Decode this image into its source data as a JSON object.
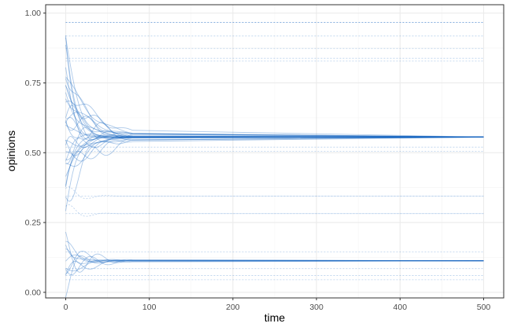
{
  "chart_data": {
    "type": "line",
    "title": "",
    "xlabel": "time",
    "ylabel": "opinions",
    "xlim": [
      -24,
      524
    ],
    "ylim": [
      -0.02,
      1.03
    ],
    "x_ticks": [
      0,
      100,
      200,
      300,
      400,
      500
    ],
    "y_ticks": [
      0.0,
      0.25,
      0.5,
      0.75,
      1.0
    ],
    "y_tick_labels": [
      "0.00",
      "0.25",
      "0.50",
      "0.75",
      "1.00"
    ],
    "x_major_minor": [
      50,
      150,
      250,
      350,
      450
    ],
    "y_minor": [
      0.125,
      0.375,
      0.625,
      0.875
    ],
    "grid": true,
    "colors": {
      "series": "#1565c0",
      "grid_major": "#ebebeb",
      "grid_minor": "#f4f4f4",
      "panel_border": "#333333"
    },
    "time_range": [
      0,
      500
    ],
    "series_groups": [
      {
        "name": "stable-0.967",
        "final_value": 0.967,
        "count": 3,
        "start_values": [
          0.967,
          0.967,
          0.967
        ]
      },
      {
        "name": "stable-0.918",
        "final_value": 0.918,
        "count": 1,
        "start_values": [
          0.918
        ]
      },
      {
        "name": "stable-0.873",
        "final_value": 0.873,
        "count": 1,
        "start_values": [
          0.873
        ]
      },
      {
        "name": "stable-0.838",
        "final_value": 0.838,
        "count": 1,
        "start_values": [
          0.838
        ]
      },
      {
        "name": "stable-0.828",
        "final_value": 0.828,
        "count": 1,
        "start_values": [
          0.828
        ]
      },
      {
        "name": "cluster-0.556",
        "final_value": 0.556,
        "count": 30,
        "start_values": [
          0.92,
          0.88,
          0.84,
          0.8,
          0.78,
          0.76,
          0.74,
          0.72,
          0.7,
          0.68,
          0.66,
          0.64,
          0.62,
          0.6,
          0.58,
          0.55,
          0.52,
          0.5,
          0.48,
          0.46,
          0.44,
          0.42,
          0.4,
          0.38,
          0.36,
          0.34,
          0.5,
          0.62,
          0.71,
          0.45
        ]
      },
      {
        "name": "stable-0.52",
        "final_value": 0.52,
        "count": 1,
        "start_values": [
          0.52
        ]
      },
      {
        "name": "stable-0.505",
        "final_value": 0.505,
        "count": 1,
        "start_values": [
          0.505
        ]
      },
      {
        "name": "stable-0.345",
        "final_value": 0.345,
        "count": 2,
        "start_values": [
          0.345,
          0.34
        ]
      },
      {
        "name": "stable-0.282",
        "final_value": 0.282,
        "count": 2,
        "start_values": [
          0.282,
          0.276
        ]
      },
      {
        "name": "stable-0.145",
        "final_value": 0.145,
        "count": 1,
        "start_values": [
          0.145
        ]
      },
      {
        "name": "cluster-0.113",
        "final_value": 0.113,
        "count": 10,
        "start_values": [
          0.17,
          0.15,
          0.14,
          0.13,
          0.12,
          0.1,
          0.09,
          0.08,
          0.07,
          0.06
        ]
      },
      {
        "name": "stable-0.085",
        "final_value": 0.085,
        "count": 1,
        "start_values": [
          0.085
        ]
      },
      {
        "name": "stable-0.06",
        "final_value": 0.06,
        "count": 1,
        "start_values": [
          0.06
        ]
      },
      {
        "name": "stable-0.045",
        "final_value": 0.045,
        "count": 1,
        "start_values": [
          0.045
        ]
      }
    ]
  }
}
